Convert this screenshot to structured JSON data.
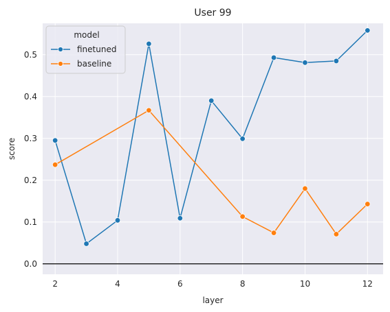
{
  "chart_data": {
    "type": "line",
    "title": "User 99",
    "xlabel": "layer",
    "ylabel": "score",
    "xlim": [
      1.6,
      12.5
    ],
    "ylim": [
      -0.025,
      0.575
    ],
    "xticks": [
      2,
      4,
      6,
      8,
      10,
      12
    ],
    "yticks": [
      0.0,
      0.1,
      0.2,
      0.3,
      0.4,
      0.5
    ],
    "ytick_labels": [
      "0.0",
      "0.1",
      "0.2",
      "0.3",
      "0.4",
      "0.5"
    ],
    "grid": true,
    "reference_line": 0.0,
    "legend": {
      "title": "model",
      "placement": "top-left"
    },
    "series": [
      {
        "name": "finetuned",
        "color": "#1f77b4",
        "x": [
          2,
          3,
          4,
          5,
          6,
          7,
          8,
          9,
          10,
          11,
          12
        ],
        "values": [
          0.295,
          0.048,
          0.104,
          0.526,
          0.109,
          0.39,
          0.299,
          0.493,
          0.481,
          0.485,
          0.558
        ]
      },
      {
        "name": "baseline",
        "color": "#ff7f0e",
        "x": [
          2,
          5,
          8,
          9,
          10,
          11,
          12
        ],
        "values": [
          0.237,
          0.367,
          0.113,
          0.074,
          0.18,
          0.071,
          0.143
        ]
      }
    ]
  }
}
